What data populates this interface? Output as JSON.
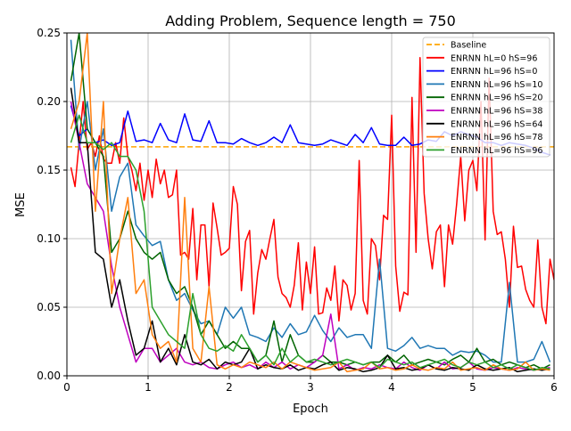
{
  "chart_data": {
    "type": "line",
    "title": "Adding Problem, Sequence length = 750",
    "xlabel": "Epoch",
    "ylabel": "MSE",
    "xlim": [
      0,
      6
    ],
    "ylim": [
      0,
      0.25
    ],
    "xticks": [
      "0",
      "1",
      "2",
      "3",
      "4",
      "5",
      "6"
    ],
    "yticks": [
      "0.00",
      "0.05",
      "0.10",
      "0.15",
      "0.20",
      "0.25"
    ],
    "grid": true,
    "legend_position": "top-right",
    "baseline": {
      "name": "Baseline",
      "value": 0.167,
      "color": "#ffa500"
    },
    "series": [
      {
        "name": "ENRNN hL=0 hS=96",
        "color": "#ff0000",
        "x_start": 0.05,
        "x_step": 0.05,
        "values": [
          0.152,
          0.138,
          0.17,
          0.2,
          0.165,
          0.17,
          0.16,
          0.175,
          0.158,
          0.155,
          0.155,
          0.17,
          0.155,
          0.188,
          0.16,
          0.15,
          0.135,
          0.155,
          0.128,
          0.15,
          0.13,
          0.158,
          0.14,
          0.15,
          0.13,
          0.132,
          0.15,
          0.088,
          0.09,
          0.085,
          0.122,
          0.07,
          0.11,
          0.11,
          0.065,
          0.126,
          0.108,
          0.088,
          0.09,
          0.093,
          0.138,
          0.125,
          0.062,
          0.098,
          0.106,
          0.045,
          0.075,
          0.092,
          0.085,
          0.1,
          0.114,
          0.072,
          0.06,
          0.057,
          0.05,
          0.066,
          0.097,
          0.048,
          0.083,
          0.06,
          0.094,
          0.045,
          0.046,
          0.064,
          0.055,
          0.08,
          0.04,
          0.07,
          0.066,
          0.048,
          0.06,
          0.157,
          0.055,
          0.045,
          0.1,
          0.095,
          0.07,
          0.117,
          0.114,
          0.19,
          0.08,
          0.047,
          0.061,
          0.059,
          0.203,
          0.09,
          0.232,
          0.133,
          0.1,
          0.078,
          0.105,
          0.11,
          0.065,
          0.11,
          0.096,
          0.125,
          0.16,
          0.113,
          0.15,
          0.157,
          0.135,
          0.2,
          0.099,
          0.217,
          0.12,
          0.103,
          0.105,
          0.085,
          0.05,
          0.109,
          0.079,
          0.08,
          0.063,
          0.055,
          0.05,
          0.099,
          0.05,
          0.038,
          0.085,
          0.07
        ]
      },
      {
        "name": "ENRNN hL=96 hS=0",
        "color": "#0000ff",
        "x_start": 0.05,
        "x_step": 0.1,
        "values": [
          0.197,
          0.175,
          0.18,
          0.17,
          0.172,
          0.168,
          0.17,
          0.193,
          0.171,
          0.172,
          0.17,
          0.184,
          0.172,
          0.17,
          0.191,
          0.172,
          0.171,
          0.186,
          0.17,
          0.17,
          0.169,
          0.173,
          0.17,
          0.168,
          0.17,
          0.174,
          0.17,
          0.183,
          0.17,
          0.169,
          0.168,
          0.169,
          0.172,
          0.17,
          0.168,
          0.176,
          0.17,
          0.181,
          0.169,
          0.168,
          0.168,
          0.174,
          0.168,
          0.169,
          0.172,
          0.171,
          0.178,
          0.175,
          0.178,
          0.176,
          0.174,
          0.17,
          0.17,
          0.168,
          0.17,
          0.169,
          0.168,
          0.166,
          0.163,
          0.161
        ]
      },
      {
        "name": "ENRNN hL=96 hS=10",
        "color": "#1f77b4",
        "x_start": 0.05,
        "x_step": 0.1,
        "values": [
          0.245,
          0.165,
          0.2,
          0.15,
          0.18,
          0.12,
          0.145,
          0.155,
          0.11,
          0.102,
          0.095,
          0.098,
          0.07,
          0.055,
          0.06,
          0.048,
          0.038,
          0.04,
          0.03,
          0.05,
          0.042,
          0.05,
          0.03,
          0.028,
          0.025,
          0.035,
          0.028,
          0.038,
          0.03,
          0.032,
          0.044,
          0.033,
          0.025,
          0.035,
          0.028,
          0.03,
          0.03,
          0.02,
          0.085,
          0.02,
          0.018,
          0.022,
          0.028,
          0.02,
          0.022,
          0.02,
          0.02,
          0.015,
          0.018,
          0.017,
          0.018,
          0.015,
          0.01,
          0.01,
          0.068,
          0.01,
          0.01,
          0.012,
          0.025,
          0.01
        ]
      },
      {
        "name": "ENRNN hL=96 hS=20",
        "color": "#006400",
        "x_start": 0.05,
        "x_step": 0.1,
        "values": [
          0.215,
          0.25,
          0.18,
          0.17,
          0.16,
          0.09,
          0.1,
          0.12,
          0.1,
          0.09,
          0.085,
          0.09,
          0.07,
          0.06,
          0.065,
          0.05,
          0.03,
          0.04,
          0.03,
          0.02,
          0.025,
          0.02,
          0.02,
          0.01,
          0.015,
          0.04,
          0.01,
          0.03,
          0.015,
          0.01,
          0.01,
          0.015,
          0.01,
          0.01,
          0.008,
          0.01,
          0.008,
          0.01,
          0.01,
          0.015,
          0.01,
          0.015,
          0.008,
          0.01,
          0.012,
          0.01,
          0.008,
          0.012,
          0.015,
          0.01,
          0.02,
          0.01,
          0.012,
          0.008,
          0.01,
          0.008,
          0.006,
          0.008,
          0.005,
          0.008
        ]
      },
      {
        "name": "ENRNN hL=96 hS=38",
        "color": "#bf00bf",
        "x_start": 0.05,
        "x_step": 0.1,
        "values": [
          0.2,
          0.17,
          0.14,
          0.13,
          0.12,
          0.08,
          0.05,
          0.03,
          0.01,
          0.02,
          0.02,
          0.01,
          0.015,
          0.02,
          0.01,
          0.008,
          0.01,
          0.006,
          0.005,
          0.008,
          0.01,
          0.006,
          0.008,
          0.005,
          0.01,
          0.006,
          0.01,
          0.005,
          0.008,
          0.006,
          0.01,
          0.015,
          0.045,
          0.005,
          0.008,
          0.004,
          0.006,
          0.005,
          0.008,
          0.006,
          0.005,
          0.01,
          0.006,
          0.004,
          0.008,
          0.005,
          0.01,
          0.005,
          0.006,
          0.01,
          0.005,
          0.004,
          0.006,
          0.005,
          0.004,
          0.006,
          0.005,
          0.004,
          0.005,
          0.006
        ]
      },
      {
        "name": "ENRNN hL=96 hS=64",
        "color": "#000000",
        "x_start": 0.05,
        "x_step": 0.1,
        "values": [
          0.21,
          0.17,
          0.17,
          0.09,
          0.085,
          0.05,
          0.07,
          0.04,
          0.015,
          0.02,
          0.04,
          0.01,
          0.02,
          0.008,
          0.03,
          0.01,
          0.008,
          0.012,
          0.005,
          0.01,
          0.008,
          0.01,
          0.02,
          0.005,
          0.008,
          0.006,
          0.005,
          0.008,
          0.004,
          0.006,
          0.005,
          0.008,
          0.01,
          0.004,
          0.006,
          0.005,
          0.003,
          0.004,
          0.006,
          0.015,
          0.005,
          0.006,
          0.004,
          0.005,
          0.008,
          0.005,
          0.004,
          0.006,
          0.005,
          0.004,
          0.008,
          0.005,
          0.004,
          0.005,
          0.006,
          0.003,
          0.004,
          0.005,
          0.004,
          0.005
        ]
      },
      {
        "name": "ENRNN hL=96 hS=78",
        "color": "#ff7f0e",
        "x_start": 0.05,
        "x_step": 0.1,
        "values": [
          0.18,
          0.2,
          0.25,
          0.12,
          0.2,
          0.06,
          0.1,
          0.13,
          0.06,
          0.07,
          0.03,
          0.02,
          0.025,
          0.01,
          0.13,
          0.02,
          0.01,
          0.065,
          0.008,
          0.005,
          0.008,
          0.006,
          0.01,
          0.008,
          0.006,
          0.01,
          0.005,
          0.01,
          0.008,
          0.006,
          0.004,
          0.005,
          0.006,
          0.01,
          0.003,
          0.004,
          0.005,
          0.01,
          0.005,
          0.006,
          0.004,
          0.005,
          0.008,
          0.005,
          0.004,
          0.006,
          0.005,
          0.01,
          0.004,
          0.005,
          0.006,
          0.004,
          0.008,
          0.005,
          0.004,
          0.005,
          0.01,
          0.004,
          0.005,
          0.004
        ]
      },
      {
        "name": "ENRNN hL=96 hS=96",
        "color": "#2ca02c",
        "x_start": 0.05,
        "x_step": 0.1,
        "values": [
          0.17,
          0.19,
          0.17,
          0.17,
          0.165,
          0.17,
          0.16,
          0.16,
          0.15,
          0.12,
          0.05,
          0.04,
          0.03,
          0.025,
          0.02,
          0.06,
          0.03,
          0.02,
          0.018,
          0.022,
          0.018,
          0.03,
          0.02,
          0.01,
          0.015,
          0.008,
          0.02,
          0.01,
          0.015,
          0.01,
          0.012,
          0.01,
          0.008,
          0.01,
          0.012,
          0.01,
          0.008,
          0.01,
          0.006,
          0.012,
          0.01,
          0.008,
          0.01,
          0.006,
          0.008,
          0.01,
          0.012,
          0.008,
          0.006,
          0.01,
          0.008,
          0.01,
          0.006,
          0.008,
          0.005,
          0.008,
          0.006,
          0.004,
          0.006,
          0.005
        ]
      }
    ]
  }
}
